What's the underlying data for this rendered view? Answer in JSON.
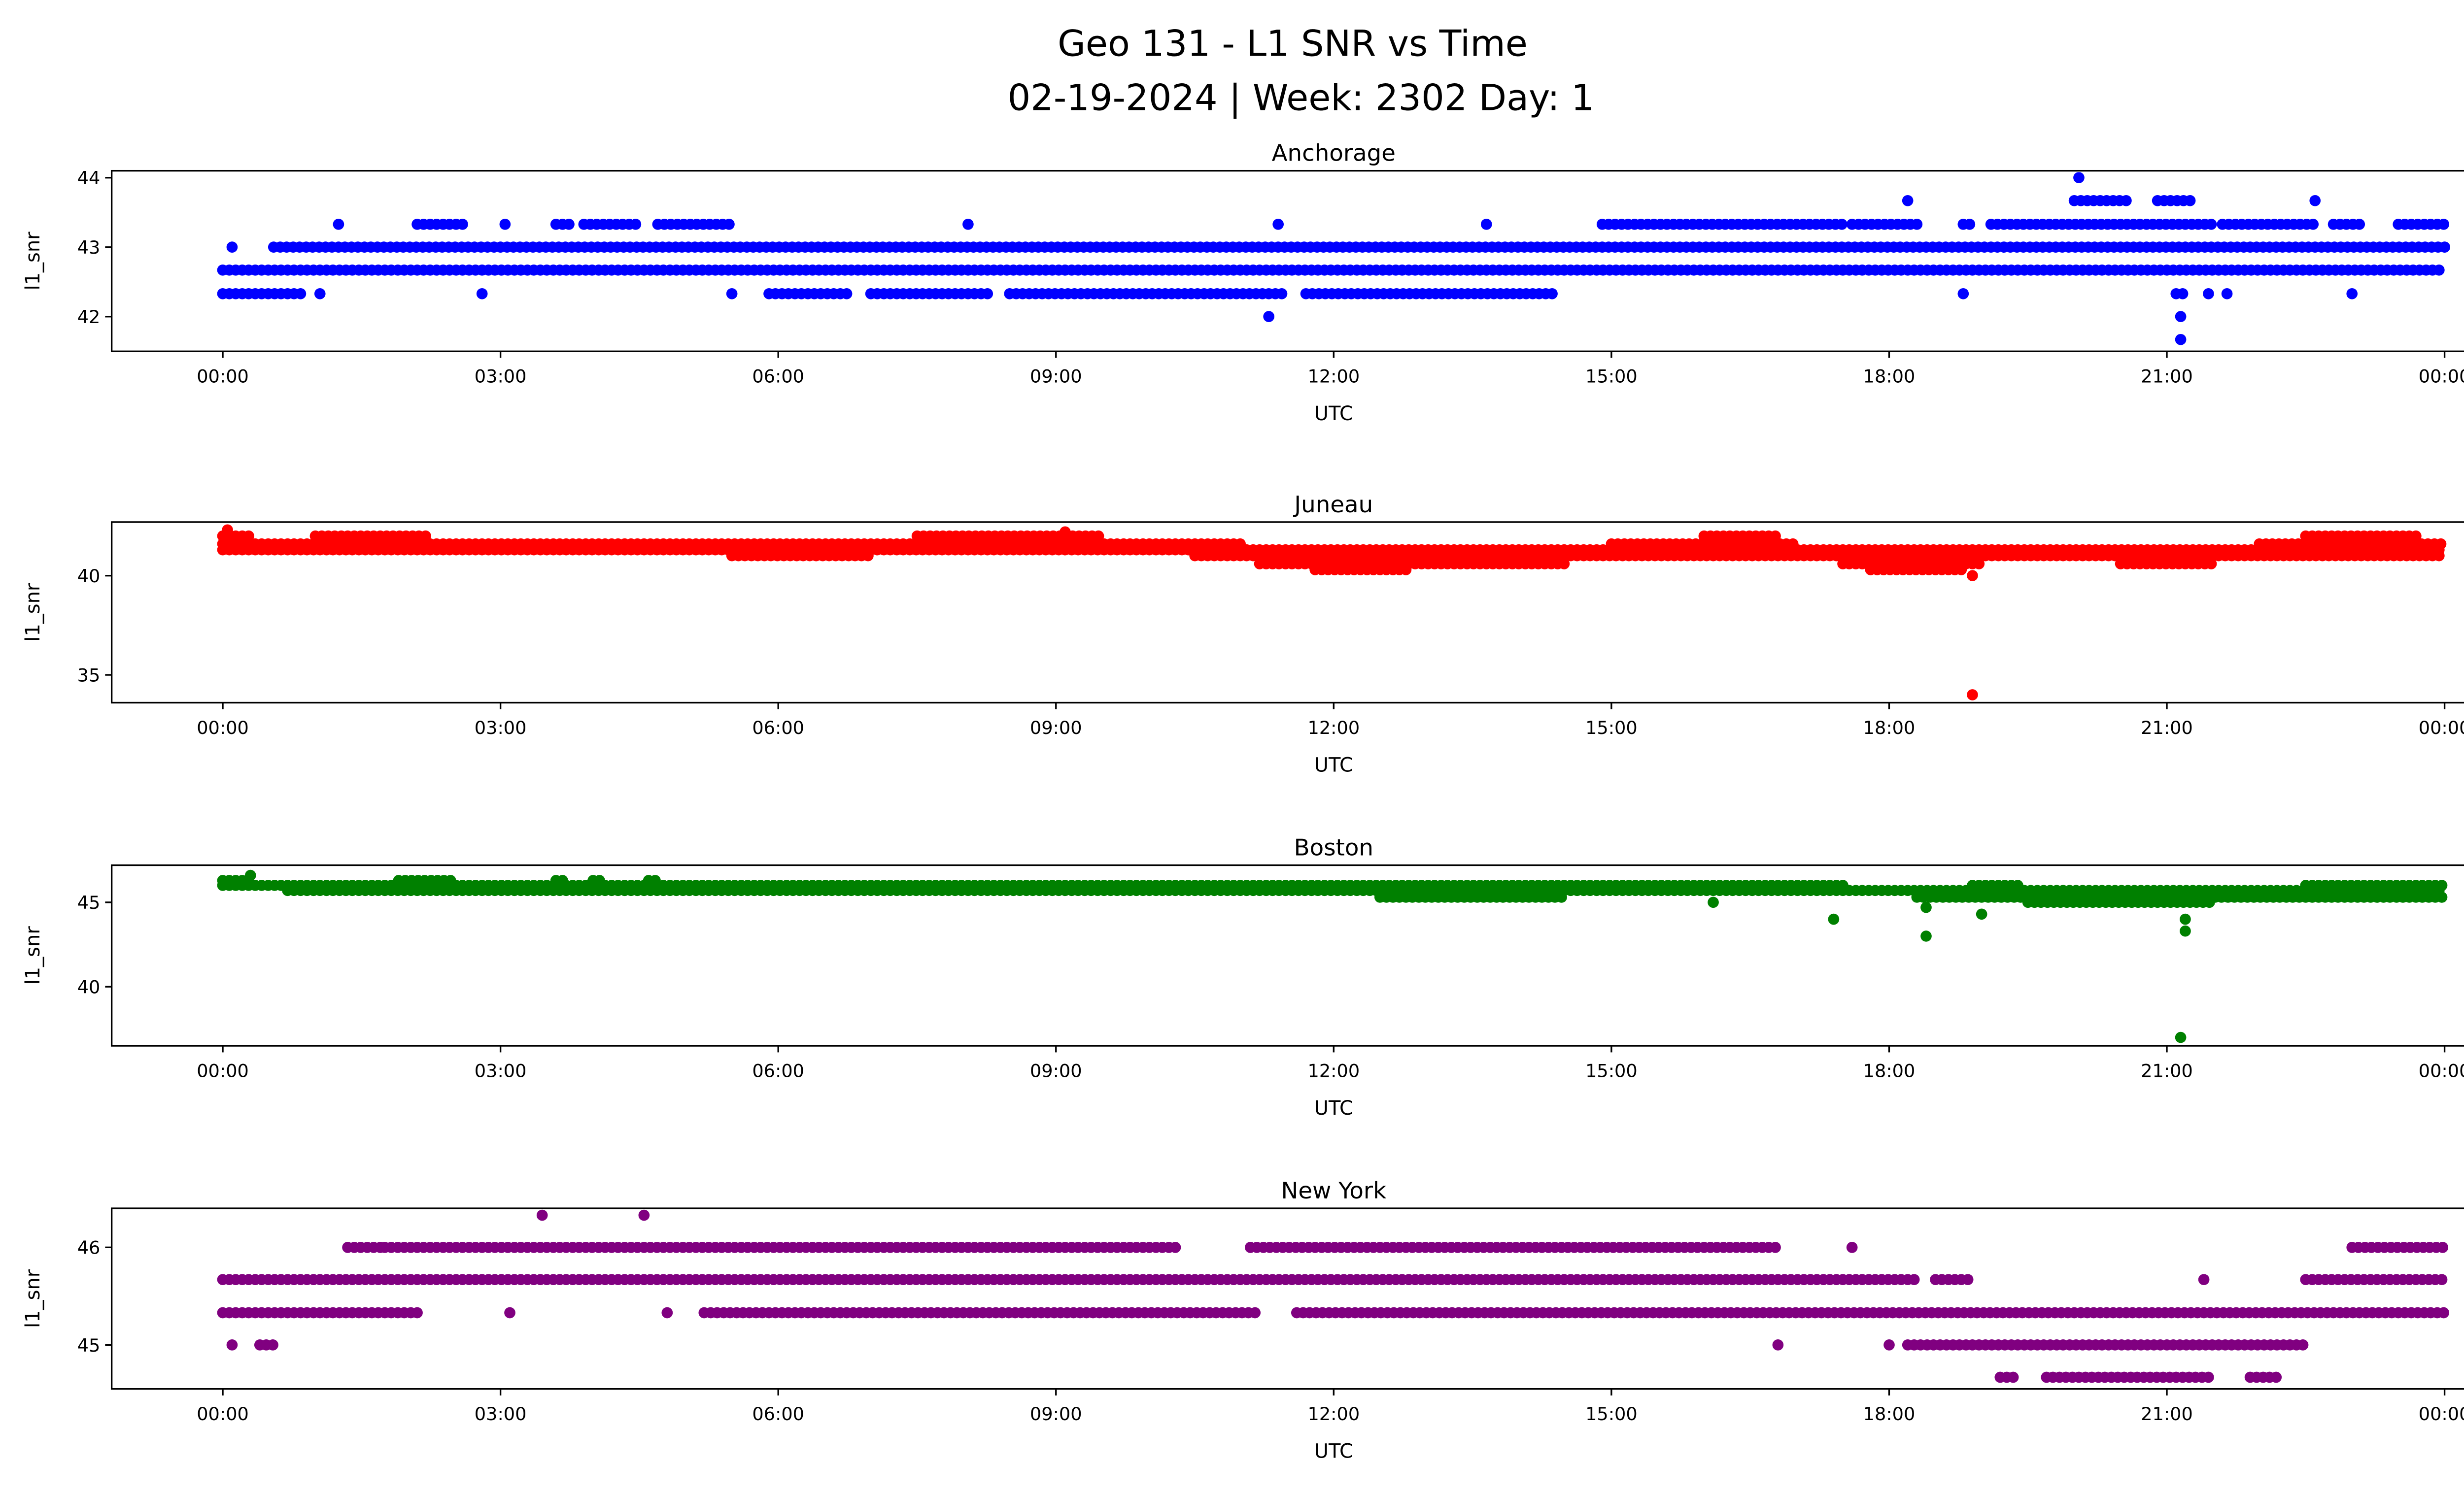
{
  "chart_data": {
    "type": "scatter",
    "title_line1": "Geo 131 - L1 SNR vs Time",
    "title_line2": "02-19-2024 | Week: 2302 Day: 1",
    "xlim_hours": [
      -1.2,
      25.2
    ],
    "x_ticks": [
      {
        "h": 0,
        "label": "00:00"
      },
      {
        "h": 3,
        "label": "03:00"
      },
      {
        "h": 6,
        "label": "06:00"
      },
      {
        "h": 9,
        "label": "09:00"
      },
      {
        "h": 12,
        "label": "12:00"
      },
      {
        "h": 15,
        "label": "15:00"
      },
      {
        "h": 18,
        "label": "18:00"
      },
      {
        "h": 21,
        "label": "21:00"
      },
      {
        "h": 24,
        "label": "00:00"
      }
    ],
    "panels": [
      {
        "title": "Anchorage",
        "xlabel": "UTC",
        "ylabel": "l1_snr",
        "color": "#0000ff",
        "ylim": [
          41.5,
          44.1
        ],
        "y_ticks": [
          42,
          43,
          44
        ],
        "levels": [
          {
            "y": 42.67,
            "ranges": [
              [
                0,
                24
              ]
            ]
          },
          {
            "y": 43.0,
            "ranges": [
              [
                0.1,
                0.1
              ],
              [
                0.55,
                24
              ]
            ]
          },
          {
            "y": 42.33,
            "ranges": [
              [
                0,
                0.9
              ],
              [
                1.05,
                1.1
              ],
              [
                2.8,
                2.8
              ],
              [
                5.5,
                5.5
              ],
              [
                5.9,
                6.8
              ],
              [
                7,
                8.3
              ],
              [
                8.5,
                11.5
              ],
              [
                11.7,
                14.4
              ],
              [
                18.8,
                18.8
              ],
              [
                21.1,
                21.2
              ],
              [
                21.45,
                21.45
              ],
              [
                21.65,
                21.65
              ],
              [
                23,
                23
              ]
            ]
          },
          {
            "y": 43.33,
            "ranges": [
              [
                1.25,
                1.25
              ],
              [
                2.1,
                2.6
              ],
              [
                3.05,
                3.05
              ],
              [
                3.6,
                3.8
              ],
              [
                3.9,
                4.5
              ],
              [
                4.7,
                5.5
              ],
              [
                8.05,
                8.05
              ],
              [
                11.4,
                11.4
              ],
              [
                13.65,
                13.65
              ],
              [
                14.9,
                17.5
              ],
              [
                17.6,
                18.3
              ],
              [
                18.8,
                18.9
              ],
              [
                19.1,
                21.5
              ],
              [
                21.6,
                22.6
              ],
              [
                22.8,
                23.1
              ],
              [
                23.5,
                24
              ]
            ]
          },
          {
            "y": 43.67,
            "ranges": [
              [
                18.2,
                18.2
              ],
              [
                20,
                20.6
              ],
              [
                20.9,
                21.3
              ],
              [
                22.6,
                22.6
              ]
            ]
          }
        ],
        "outliers": [
          [
            20.05,
            44.0
          ],
          [
            11.3,
            42.0
          ],
          [
            21.15,
            42.0
          ],
          [
            21.15,
            41.67
          ]
        ]
      },
      {
        "title": "Juneau",
        "xlabel": "UTC",
        "ylabel": "l1_snr",
        "color": "#ff0000",
        "ylim": [
          33.6,
          42.7
        ],
        "y_ticks": [
          35,
          40
        ],
        "levels": [
          {
            "y": 41.6,
            "ranges": [
              [
                0,
                11
              ],
              [
                15,
                17
              ],
              [
                22,
                24
              ]
            ]
          },
          {
            "y": 41.3,
            "ranges": [
              [
                0,
                24
              ]
            ]
          },
          {
            "y": 41.0,
            "ranges": [
              [
                5.5,
                7
              ],
              [
                10.5,
                24
              ]
            ]
          },
          {
            "y": 42.0,
            "ranges": [
              [
                0,
                0.3
              ],
              [
                1,
                2.2
              ],
              [
                7.5,
                9.5
              ],
              [
                16,
                16.8
              ],
              [
                22.5,
                23.7
              ]
            ]
          },
          {
            "y": 40.6,
            "ranges": [
              [
                11.2,
                14.5
              ],
              [
                17.5,
                19
              ],
              [
                20.5,
                21.5
              ]
            ]
          },
          {
            "y": 40.3,
            "ranges": [
              [
                11.8,
                12.8
              ],
              [
                17.8,
                18.8
              ]
            ]
          }
        ],
        "outliers": [
          [
            18.9,
            40.0
          ],
          [
            18.9,
            34.0
          ],
          [
            0.05,
            42.3
          ],
          [
            9.1,
            42.2
          ]
        ]
      },
      {
        "title": "Boston",
        "xlabel": "UTC",
        "ylabel": "l1_snr",
        "color": "#008000",
        "ylim": [
          36.5,
          47.2
        ],
        "y_ticks": [
          40,
          45
        ],
        "levels": [
          {
            "y": 46.3,
            "ranges": [
              [
                0,
                0.3
              ],
              [
                1.9,
                2.5
              ],
              [
                3.6,
                3.7
              ],
              [
                4,
                4.1
              ],
              [
                4.6,
                4.7
              ]
            ]
          },
          {
            "y": 46.0,
            "ranges": [
              [
                0,
                17.5
              ],
              [
                18.9,
                19.4
              ],
              [
                22.5,
                24
              ]
            ]
          },
          {
            "y": 45.7,
            "ranges": [
              [
                0.7,
                24
              ]
            ]
          },
          {
            "y": 45.3,
            "ranges": [
              [
                12.5,
                14.5
              ],
              [
                18.3,
                24
              ]
            ]
          },
          {
            "y": 45.0,
            "ranges": [
              [
                19.5,
                21.5
              ]
            ]
          }
        ],
        "outliers": [
          [
            16.1,
            45.0
          ],
          [
            17.4,
            44.0
          ],
          [
            18.4,
            43.0
          ],
          [
            18.4,
            44.7
          ],
          [
            19.0,
            44.3
          ],
          [
            21.15,
            37.0
          ],
          [
            21.2,
            43.3
          ],
          [
            21.2,
            44.0
          ],
          [
            0.3,
            46.6
          ]
        ]
      },
      {
        "title": "New York",
        "xlabel": "UTC",
        "ylabel": "l1_snr",
        "color": "#800080",
        "ylim": [
          44.55,
          46.4
        ],
        "y_ticks": [
          45,
          46
        ],
        "levels": [
          {
            "y": 46.0,
            "ranges": [
              [
                1.35,
                1.7
              ],
              [
                1.75,
                10.3
              ],
              [
                11.1,
                16.8
              ],
              [
                17.6,
                17.6
              ],
              [
                23,
                24
              ]
            ]
          },
          {
            "y": 45.67,
            "ranges": [
              [
                0,
                18.3
              ],
              [
                18.5,
                18.9
              ],
              [
                21.4,
                21.4
              ],
              [
                22.5,
                24
              ]
            ]
          },
          {
            "y": 45.33,
            "ranges": [
              [
                0,
                2.1
              ],
              [
                3.1,
                3.1
              ],
              [
                4.8,
                4.8
              ],
              [
                5.2,
                11.2
              ],
              [
                11.6,
                24
              ]
            ]
          },
          {
            "y": 45.0,
            "ranges": [
              [
                0.1,
                0.1
              ],
              [
                0.4,
                0.55
              ],
              [
                16.8,
                16.8
              ],
              [
                18,
                18
              ],
              [
                18.2,
                22.5
              ]
            ]
          },
          {
            "y": 44.67,
            "ranges": [
              [
                19.2,
                19.4
              ],
              [
                19.7,
                21.5
              ],
              [
                21.9,
                22.2
              ]
            ]
          }
        ],
        "outliers": [
          [
            3.45,
            46.33
          ],
          [
            4.55,
            46.33
          ]
        ]
      }
    ]
  }
}
